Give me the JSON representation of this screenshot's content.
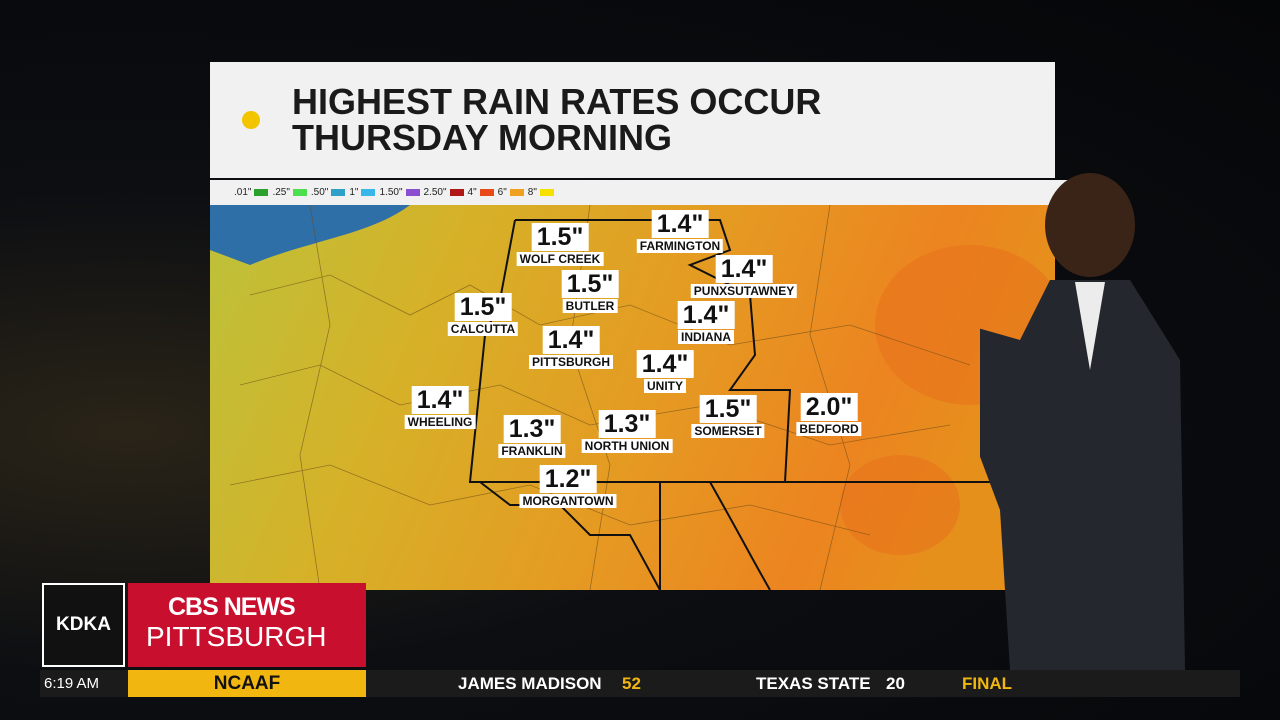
{
  "header": {
    "title": "HIGHEST RAIN RATES OCCUR THURSDAY MORNING"
  },
  "legend": [
    ".01\"",
    ".25\"",
    ".50\"",
    "1\"",
    "1.50\"",
    "2.50\"",
    "4\"",
    "6\"",
    "8\""
  ],
  "cities": [
    {
      "value": "1.5\"",
      "name": "WOLF CREEK"
    },
    {
      "value": "1.4\"",
      "name": "FARMINGTON"
    },
    {
      "value": "1.5\"",
      "name": "BUTLER"
    },
    {
      "value": "1.4\"",
      "name": "PUNXSUTAWNEY"
    },
    {
      "value": "1.5\"",
      "name": "CALCUTTA"
    },
    {
      "value": "1.4\"",
      "name": "PITTSBURGH"
    },
    {
      "value": "1.4\"",
      "name": "INDIANA"
    },
    {
      "value": "1.4\"",
      "name": "UNITY"
    },
    {
      "value": "1.4\"",
      "name": "WHEELING"
    },
    {
      "value": "1.3\"",
      "name": "FRANKLIN"
    },
    {
      "value": "1.3\"",
      "name": "NORTH UNION"
    },
    {
      "value": "1.5\"",
      "name": "SOMERSET"
    },
    {
      "value": "2.0\"",
      "name": "BEDFORD"
    },
    {
      "value": "1.2\"",
      "name": "MORGANTOWN"
    }
  ],
  "branding": {
    "station": "KDKA",
    "network": "CBS NEWS",
    "city": "PITTSBURGH"
  },
  "ticker": {
    "time": "6:19 AM",
    "league": "NCAAF",
    "team1": "JAMES MADISON",
    "score1": "52",
    "team2": "TEXAS STATE",
    "score2": "20",
    "status": "FINAL"
  }
}
